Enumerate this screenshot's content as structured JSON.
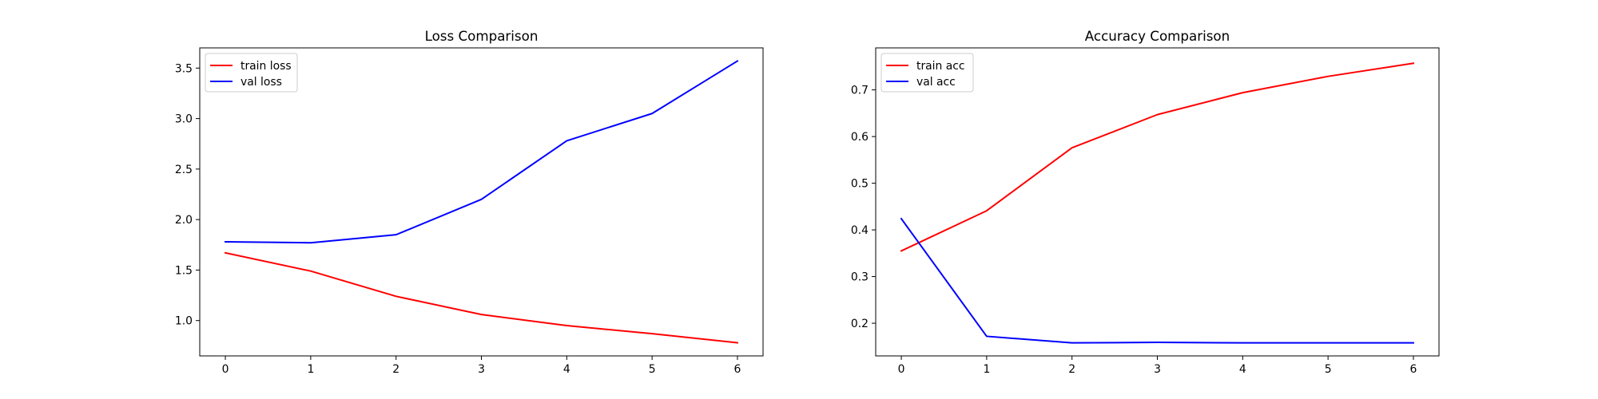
{
  "chart_data": [
    {
      "type": "line",
      "title": "Loss Comparison",
      "xlabel": "",
      "ylabel": "",
      "x": [
        0,
        1,
        2,
        3,
        4,
        5,
        6
      ],
      "xlim": [
        -0.3,
        6.3
      ],
      "ylim": [
        0.65,
        3.7
      ],
      "xticks": [
        0,
        1,
        2,
        3,
        4,
        5,
        6
      ],
      "xtick_labels": [
        "0",
        "1",
        "2",
        "3",
        "4",
        "5",
        "6"
      ],
      "yticks": [
        1.0,
        1.5,
        2.0,
        2.5,
        3.0,
        3.5
      ],
      "ytick_labels": [
        "1.0",
        "1.5",
        "2.0",
        "2.5",
        "3.0",
        "3.5"
      ],
      "grid": false,
      "legend_position": "upper-left",
      "series": [
        {
          "name": "train loss",
          "color": "#ff0000",
          "values": [
            1.67,
            1.49,
            1.24,
            1.06,
            0.95,
            0.87,
            0.78
          ]
        },
        {
          "name": "val loss",
          "color": "#0000ff",
          "values": [
            1.78,
            1.77,
            1.85,
            2.2,
            2.78,
            3.05,
            3.57
          ]
        }
      ]
    },
    {
      "type": "line",
      "title": "Accuracy Comparison",
      "xlabel": "",
      "ylabel": "",
      "x": [
        0,
        1,
        2,
        3,
        4,
        5,
        6
      ],
      "xlim": [
        -0.3,
        6.3
      ],
      "ylim": [
        0.13,
        0.79
      ],
      "xticks": [
        0,
        1,
        2,
        3,
        4,
        5,
        6
      ],
      "xtick_labels": [
        "0",
        "1",
        "2",
        "3",
        "4",
        "5",
        "6"
      ],
      "yticks": [
        0.2,
        0.3,
        0.4,
        0.5,
        0.6,
        0.7
      ],
      "ytick_labels": [
        "0.2",
        "0.3",
        "0.4",
        "0.5",
        "0.6",
        "0.7"
      ],
      "grid": false,
      "legend_position": "upper-left",
      "series": [
        {
          "name": "train acc",
          "color": "#ff0000",
          "values": [
            0.355,
            0.441,
            0.576,
            0.647,
            0.694,
            0.729,
            0.757
          ]
        },
        {
          "name": "val acc",
          "color": "#0000ff",
          "values": [
            0.424,
            0.172,
            0.158,
            0.159,
            0.158,
            0.158,
            0.158
          ]
        }
      ]
    }
  ]
}
